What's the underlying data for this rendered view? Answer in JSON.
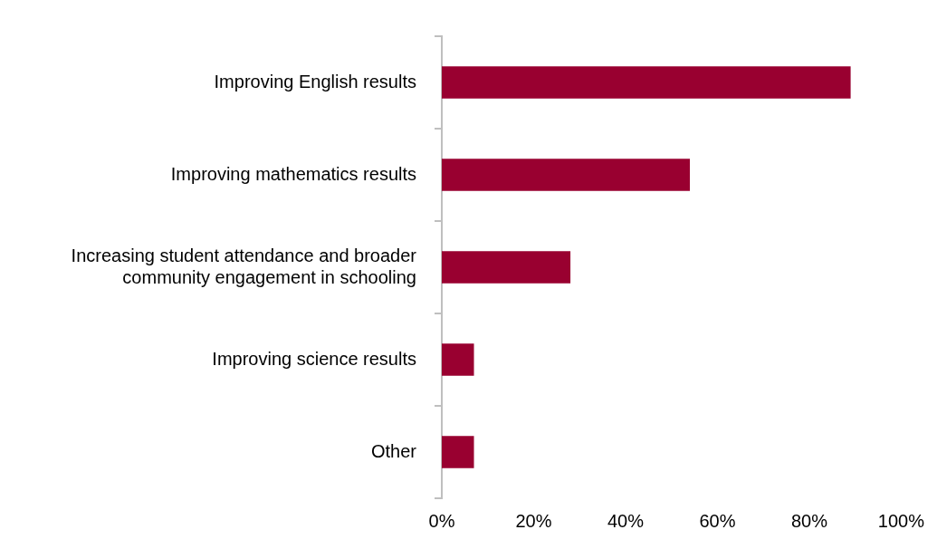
{
  "chart_data": {
    "type": "bar",
    "orientation": "horizontal",
    "categories": [
      "Improving English results",
      "Improving mathematics results",
      "Increasing student attendance and broader community engagement in schooling",
      "Improving science results",
      "Other"
    ],
    "values": [
      89,
      54,
      28,
      7,
      7
    ],
    "color": "#990030",
    "xlim": [
      0,
      100
    ],
    "xticks": [
      {
        "value": 0,
        "label": "0%"
      },
      {
        "value": 20,
        "label": "20%"
      },
      {
        "value": 40,
        "label": "40%"
      },
      {
        "value": 60,
        "label": "60%"
      },
      {
        "value": 80,
        "label": "80%"
      },
      {
        "value": 100,
        "label": "100%"
      }
    ],
    "grid": false,
    "legend": false
  }
}
